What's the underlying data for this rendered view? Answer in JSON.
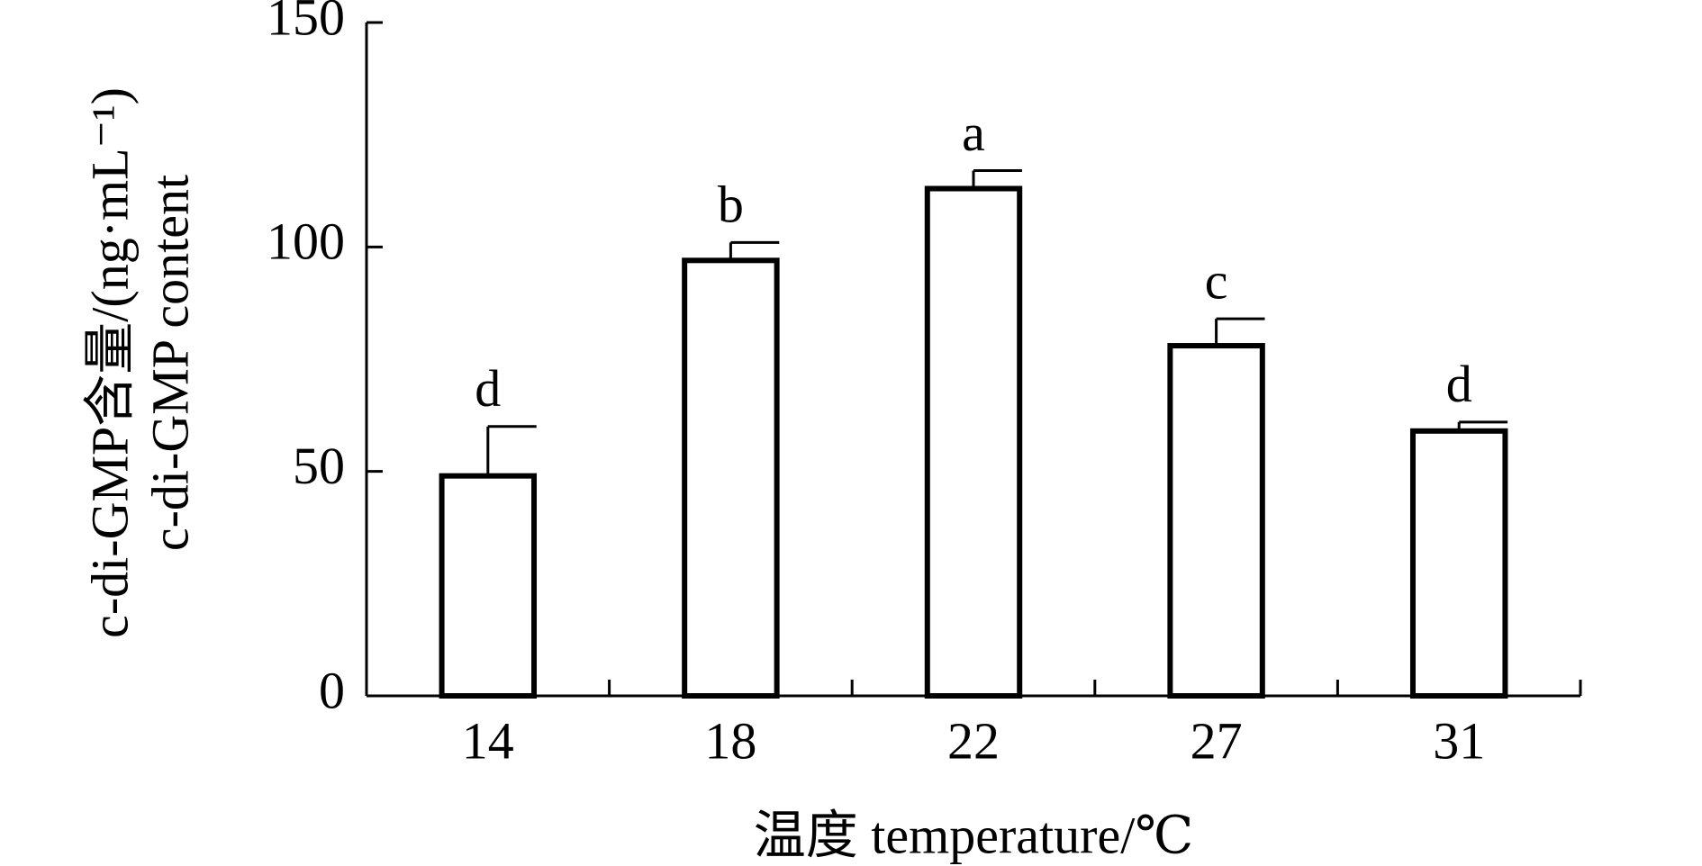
{
  "chart_data": {
    "type": "bar",
    "xlabel": "温度 temperature/℃",
    "ylabel": [
      "c-di-GMP含量/(ng·mL⁻¹)",
      "c-di-GMP content"
    ],
    "categories": [
      "14",
      "18",
      "22",
      "27",
      "31"
    ],
    "values": [
      49,
      97,
      113,
      78,
      59
    ],
    "errors": [
      11,
      4,
      4,
      6,
      2
    ],
    "significance": [
      "d",
      "b",
      "a",
      "c",
      "d"
    ],
    "color": "#ffffff",
    "edgecolor": "#000000",
    "ylim": [
      0,
      150
    ],
    "yticks": [
      0,
      50,
      100,
      150
    ],
    "grid": false
  }
}
